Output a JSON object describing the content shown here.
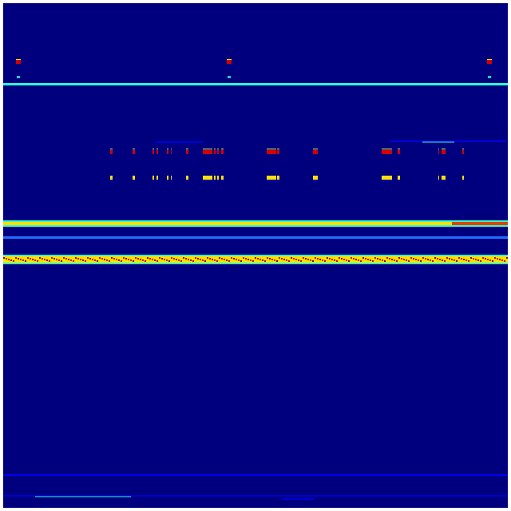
{
  "spectrogram": {
    "colormap": "jet",
    "colors": {
      "background": "#00007f",
      "low": "#0000ff",
      "cyan": "#33ffcc",
      "yellow": "#ffe000",
      "red": "#d00000",
      "dark_red": "#800000"
    }
  }
}
